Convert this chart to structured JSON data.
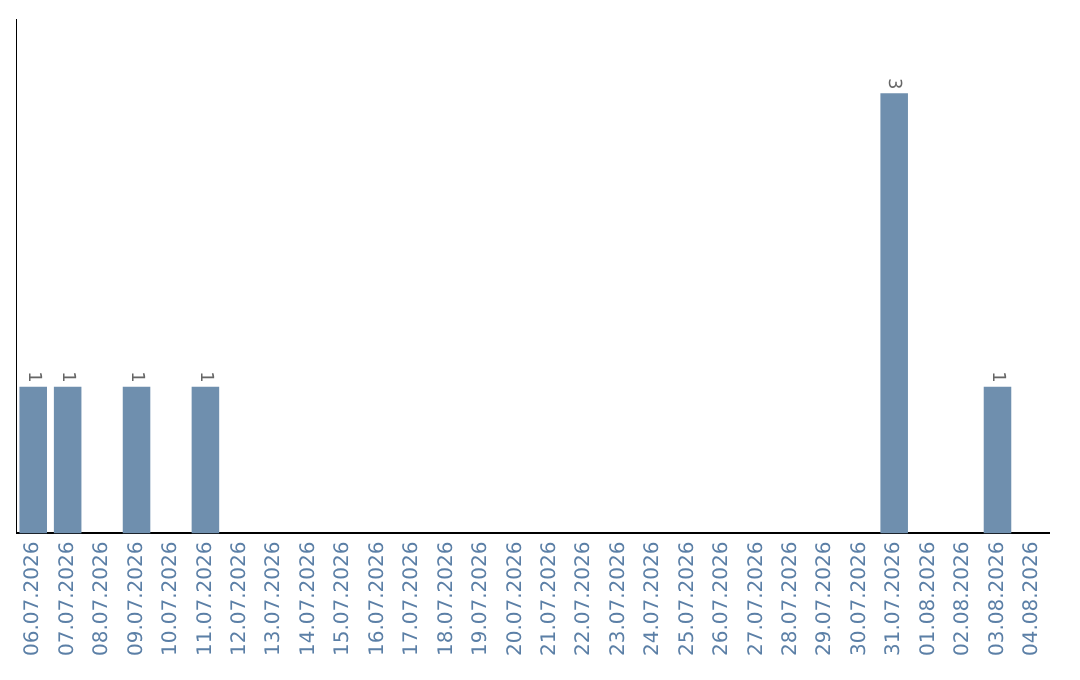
{
  "chart_data": {
    "type": "bar",
    "categories": [
      "06.07.2026",
      "07.07.2026",
      "08.07.2026",
      "09.07.2026",
      "10.07.2026",
      "11.07.2026",
      "12.07.2026",
      "13.07.2026",
      "14.07.2026",
      "15.07.2026",
      "16.07.2026",
      "17.07.2026",
      "18.07.2026",
      "19.07.2026",
      "20.07.2026",
      "21.07.2026",
      "22.07.2026",
      "23.07.2026",
      "24.07.2026",
      "25.07.2026",
      "26.07.2026",
      "27.07.2026",
      "28.07.2026",
      "29.07.2026",
      "30.07.2026",
      "31.07.2026",
      "01.08.2026",
      "02.08.2026",
      "03.08.2026",
      "04.08.2026"
    ],
    "values": [
      1,
      1,
      0,
      1,
      0,
      1,
      0,
      0,
      0,
      0,
      0,
      0,
      0,
      0,
      0,
      0,
      0,
      0,
      0,
      0,
      0,
      0,
      0,
      0,
      0,
      3,
      0,
      0,
      1,
      0
    ],
    "value_labels": [
      "1",
      "1",
      null,
      "1",
      null,
      "1",
      null,
      null,
      null,
      null,
      null,
      null,
      null,
      null,
      null,
      null,
      null,
      null,
      null,
      null,
      null,
      null,
      null,
      null,
      null,
      "3",
      null,
      null,
      "1",
      null
    ],
    "color": "#6f8fae",
    "grid": false,
    "legend": false,
    "tick_labels": "x"
  }
}
